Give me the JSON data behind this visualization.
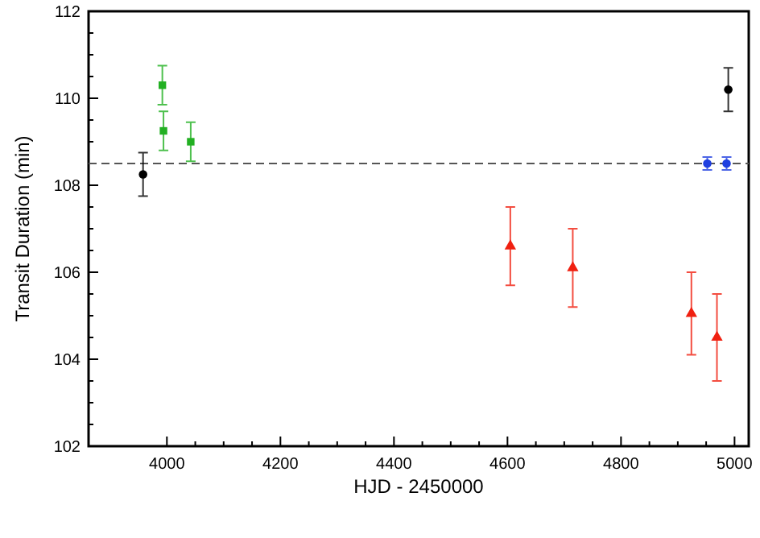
{
  "chart_data": {
    "type": "scatter",
    "xlabel": "HJD - 2450000",
    "ylabel": "Transit Duration (min)",
    "xlim": [
      3862,
      5025
    ],
    "xticks": [
      4000,
      4200,
      4400,
      4600,
      4800,
      5000
    ],
    "ylim": [
      102,
      112
    ],
    "yticks": [
      102,
      104,
      106,
      108,
      110,
      112
    ],
    "grid": false,
    "ref_lines": [
      {
        "axis": "y",
        "value": 108.5,
        "color": "#555555",
        "line_style": "dashed"
      }
    ],
    "series": [
      {
        "color": "#000000",
        "marker": "circle",
        "x": [
          3958,
          4989
        ],
        "values": [
          108.25,
          110.2
        ],
        "errors": [
          0.5,
          0.5
        ]
      },
      {
        "color": "#22b022",
        "marker": "square",
        "x": [
          3992,
          3994,
          4042
        ],
        "values": [
          110.3,
          109.25,
          109.0
        ],
        "errors": [
          0.45,
          0.45,
          0.45
        ]
      },
      {
        "color": "#1f3fe0",
        "marker": "circle",
        "x": [
          4952,
          4986
        ],
        "values": [
          108.5,
          108.5
        ],
        "errors": [
          0.15,
          0.15
        ]
      },
      {
        "color": "#f02010",
        "marker": "triangle",
        "x": [
          4605,
          4715,
          4924,
          4969
        ],
        "values": [
          106.6,
          106.1,
          105.05,
          104.5
        ],
        "errors": [
          0.9,
          0.9,
          0.95,
          1.0
        ]
      }
    ]
  }
}
